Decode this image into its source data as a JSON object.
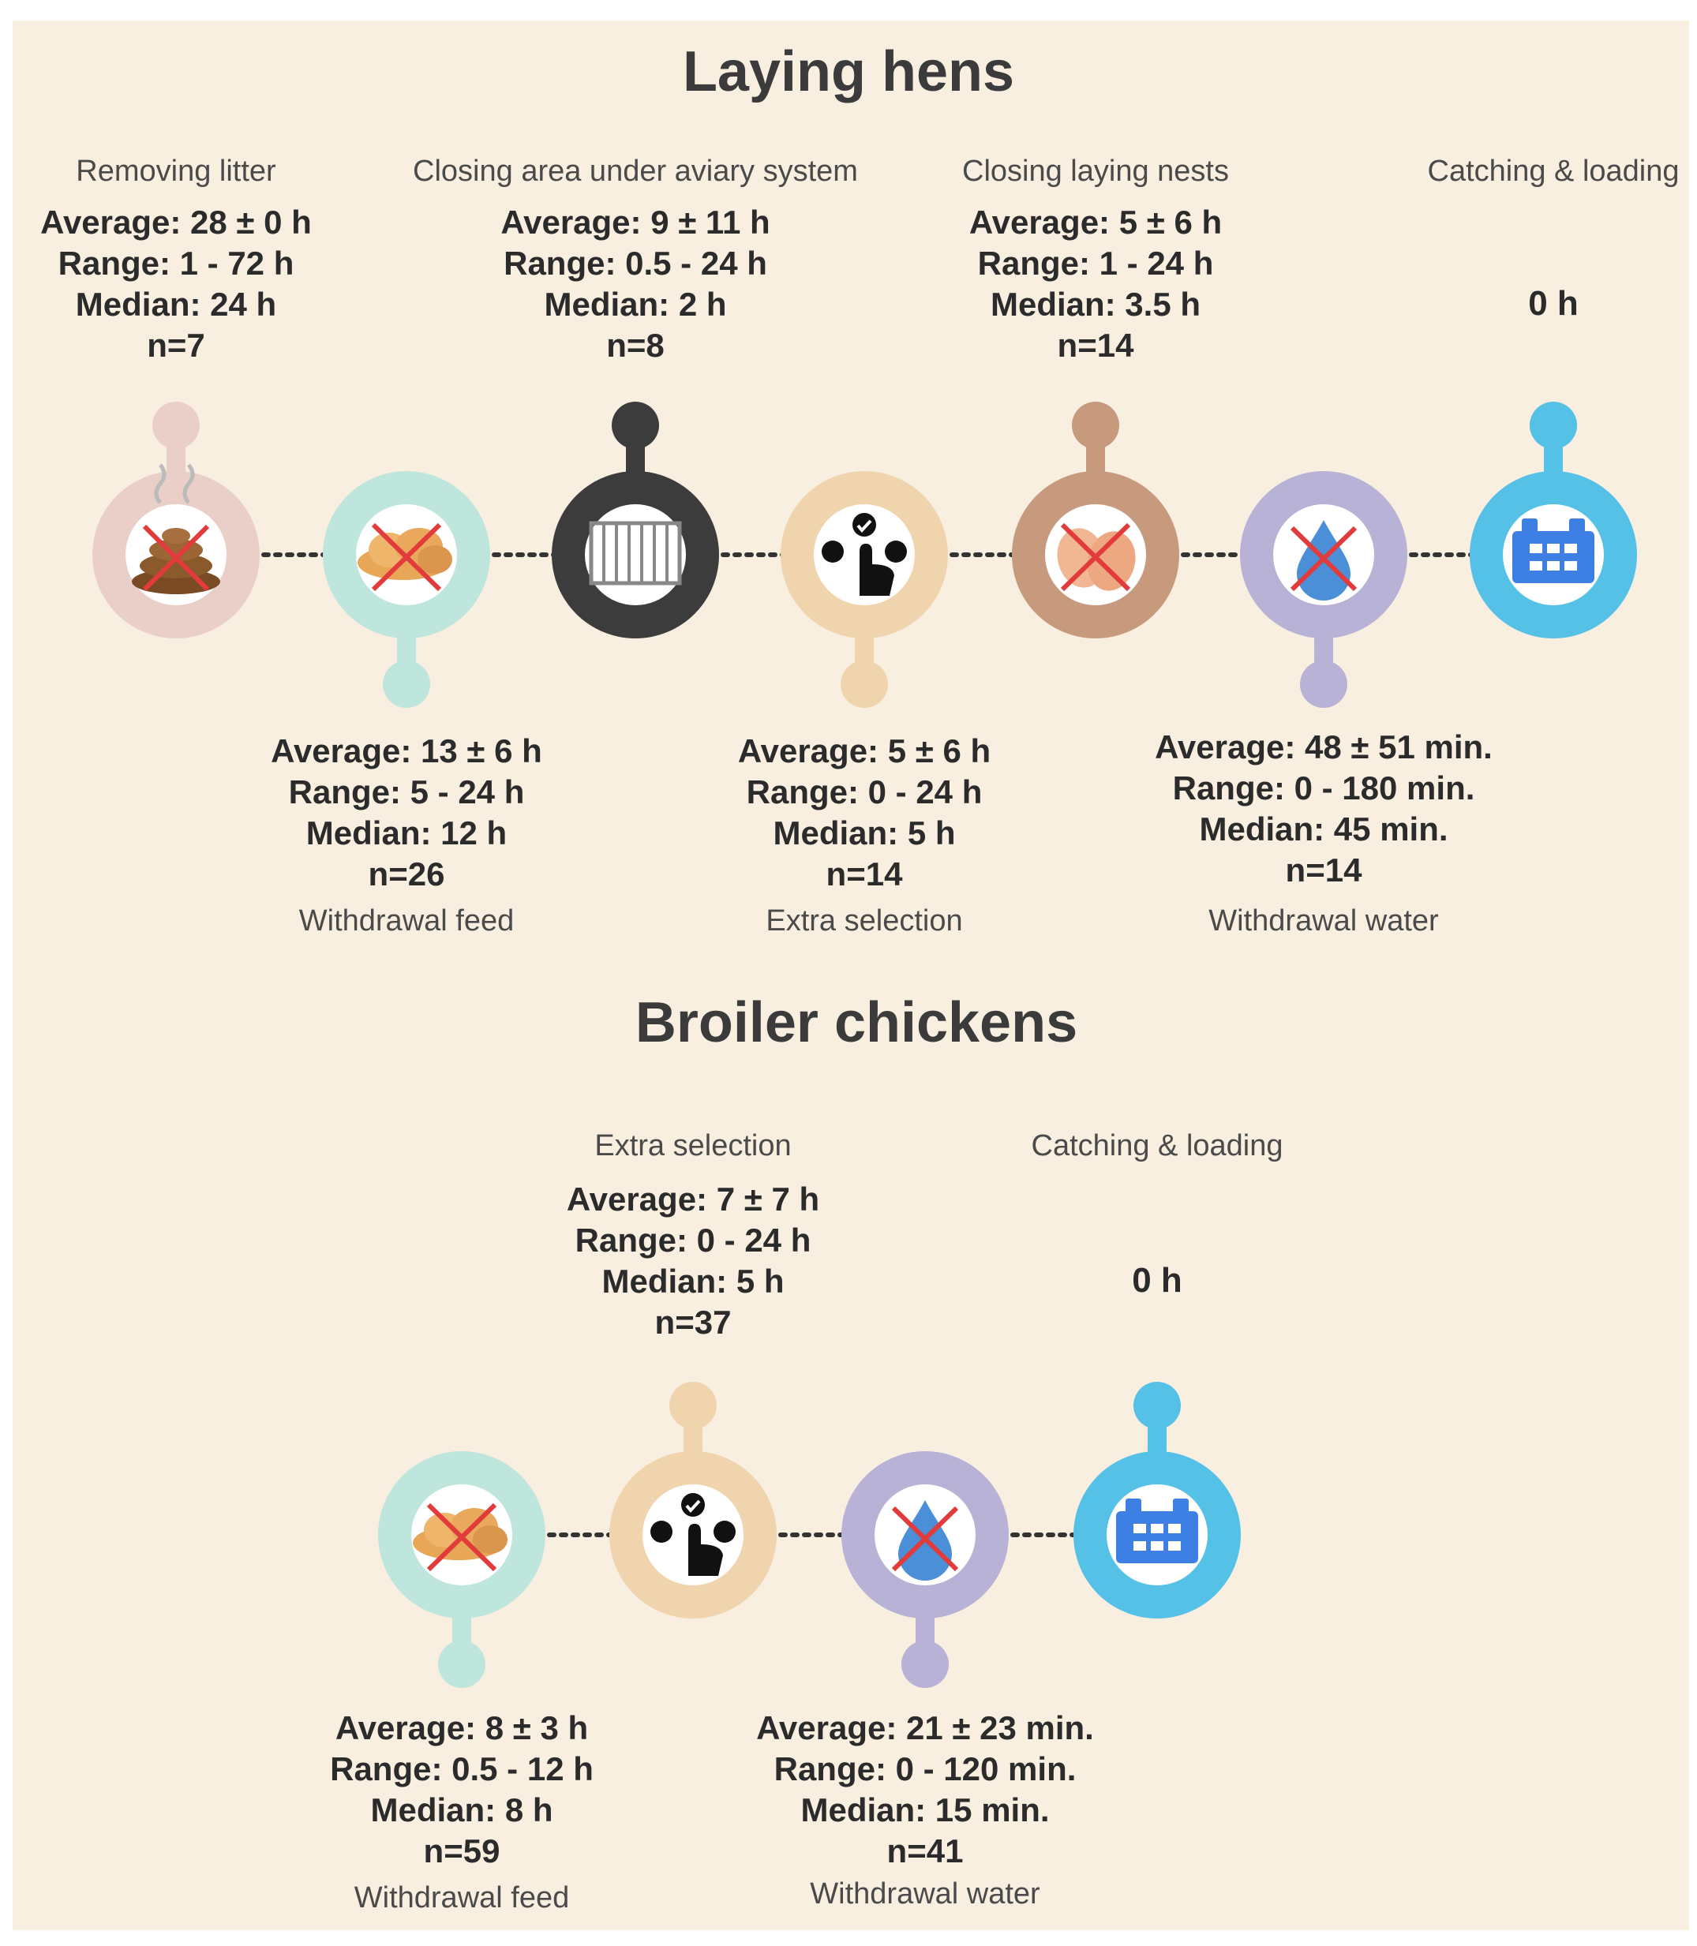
{
  "hens": {
    "title": "Laying hens",
    "steps": [
      {
        "label": "Removing litter",
        "avg": "Average: 28 ± 0 h",
        "range": "Range: 1 - 72 h",
        "median": "Median: 24 h",
        "n": "n=7",
        "color": "#e9cfc8",
        "icon": "litter-crossed-icon"
      },
      {
        "label": "Withdrawal feed",
        "avg": "Average: 13 ± 6 h",
        "range": "Range: 5 - 24 h",
        "median": "Median: 12 h",
        "n": "n=26",
        "color": "#bfe6dc",
        "icon": "feed-crossed-icon"
      },
      {
        "label": "Closing area under aviary system",
        "avg": "Average: 9 ± 11 h",
        "range": "Range: 0.5 - 24 h",
        "median": "Median: 2 h",
        "n": "n=8",
        "color": "#3c3c3c",
        "icon": "gate-icon"
      },
      {
        "label": "Extra selection",
        "avg": "Average: 5 ± 6 h",
        "range": "Range: 0 - 24 h",
        "median": "Median: 5 h",
        "n": "n=14",
        "color": "#f0d4ae",
        "icon": "selection-icon"
      },
      {
        "label": "Closing laying nests",
        "avg": "Average: 5 ± 6 h",
        "range": "Range: 1 - 24 h",
        "median": "Median: 3.5 h",
        "n": "n=14",
        "color": "#c79a7d",
        "icon": "eggs-crossed-icon"
      },
      {
        "label": "Withdrawal water",
        "avg": "Average: 48  ± 51 min.",
        "range": "Range: 0 - 180 min.",
        "median": "Median: 45 min.",
        "n": "n=14",
        "color": "#b7b2d6",
        "icon": "water-crossed-icon"
      },
      {
        "label": "Catching & loading",
        "zero": "0 h",
        "color": "#55c1e7",
        "icon": "crate-icon"
      }
    ]
  },
  "broilers": {
    "title": "Broiler chickens",
    "steps": [
      {
        "label": "Withdrawal feed",
        "avg": "Average: 8 ± 3 h",
        "range": "Range: 0.5 - 12 h",
        "median": "Median: 8 h",
        "n": "n=59",
        "color": "#bfe6dc",
        "icon": "feed-crossed-icon"
      },
      {
        "label": "Extra selection",
        "avg": "Average: 7 ± 7 h",
        "range": "Range: 0 - 24 h",
        "median": "Median: 5 h",
        "n": "n=37",
        "color": "#f0d4ae",
        "icon": "selection-icon"
      },
      {
        "label": "Withdrawal water",
        "avg": "Average: 21 ± 23 min.",
        "range": "Range: 0 - 120 min.",
        "median": "Median: 15 min.",
        "n": "n=41",
        "color": "#b7b2d6",
        "icon": "water-crossed-icon"
      },
      {
        "label": "Catching & loading",
        "zero": "0 h",
        "color": "#55c1e7",
        "icon": "crate-icon"
      }
    ]
  }
}
